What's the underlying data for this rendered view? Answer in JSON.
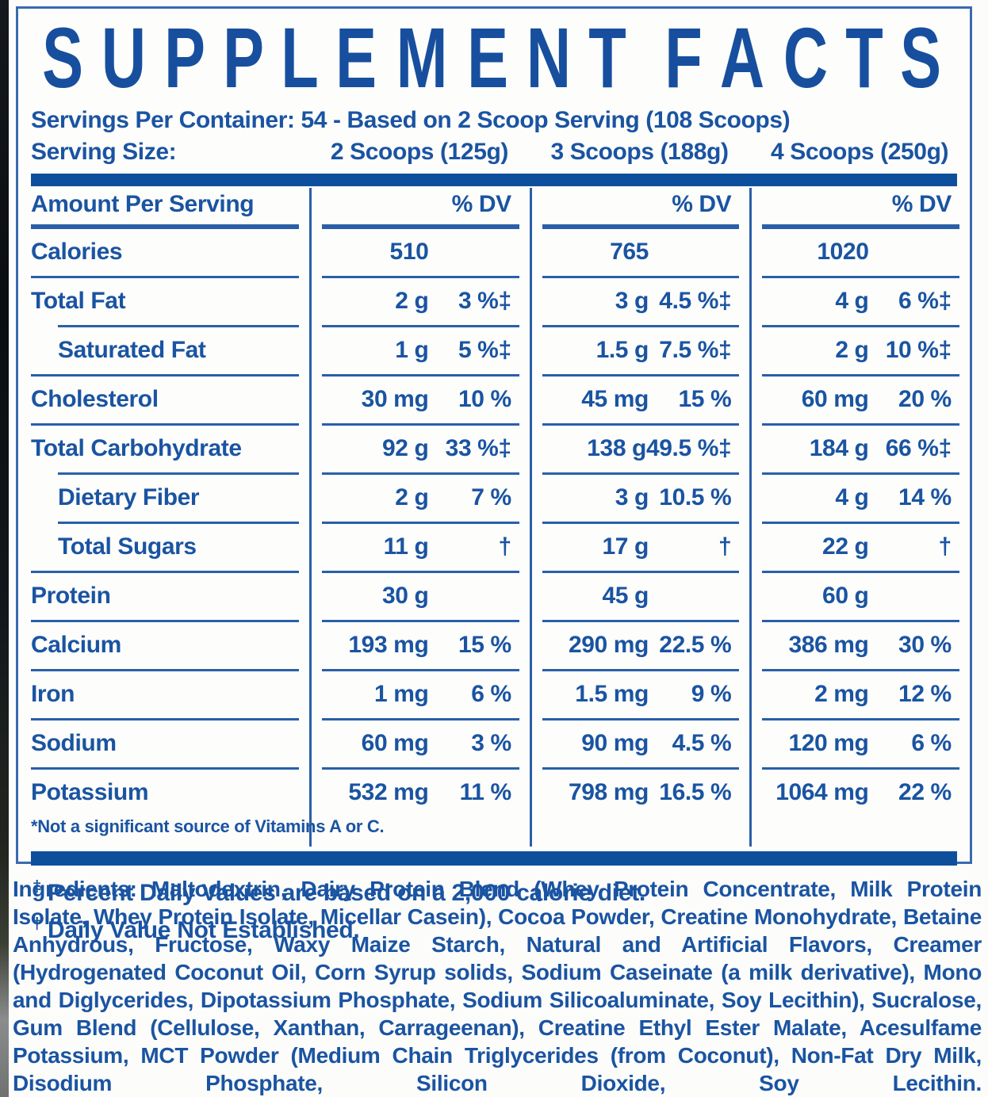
{
  "title": "SUPPLEMENT FACTS",
  "servings_line": "Servings Per Container: 54 - Based on 2 Scoop Serving (108 Scoops)",
  "serving_size_label": "Serving Size:",
  "serving_columns": [
    "2 Scoops (125g)",
    "3 Scoops (188g)",
    "4 Scoops (250g)"
  ],
  "table": {
    "header": {
      "label": "Amount Per Serving",
      "dv": "% DV"
    },
    "rows": [
      {
        "name": "Calories",
        "indent": false,
        "values": [
          {
            "amt": "510",
            "dv": ""
          },
          {
            "amt": "765",
            "dv": ""
          },
          {
            "amt": "1020",
            "dv": ""
          }
        ]
      },
      {
        "name": "Total Fat",
        "indent": false,
        "values": [
          {
            "amt": "2 g",
            "dv": "3 %‡"
          },
          {
            "amt": "3 g",
            "dv": "4.5 %‡"
          },
          {
            "amt": "4 g",
            "dv": "6 %‡"
          }
        ]
      },
      {
        "name": "Saturated Fat",
        "indent": true,
        "values": [
          {
            "amt": "1 g",
            "dv": "5 %‡"
          },
          {
            "amt": "1.5 g",
            "dv": "7.5 %‡"
          },
          {
            "amt": "2 g",
            "dv": "10 %‡"
          }
        ]
      },
      {
        "name": "Cholesterol",
        "indent": false,
        "values": [
          {
            "amt": "30 mg",
            "dv": "10 %"
          },
          {
            "amt": "45 mg",
            "dv": "15 %"
          },
          {
            "amt": "60 mg",
            "dv": "20 %"
          }
        ]
      },
      {
        "name": "Total Carbohydrate",
        "indent": false,
        "values": [
          {
            "amt": "92 g",
            "dv": "33 %‡"
          },
          {
            "amt": "138 g",
            "dv": "49.5 %‡"
          },
          {
            "amt": "184 g",
            "dv": "66 %‡"
          }
        ]
      },
      {
        "name": "Dietary Fiber",
        "indent": true,
        "values": [
          {
            "amt": "2 g",
            "dv": "7 %"
          },
          {
            "amt": "3 g",
            "dv": "10.5 %"
          },
          {
            "amt": "4 g",
            "dv": "14 %"
          }
        ]
      },
      {
        "name": "Total Sugars",
        "indent": true,
        "values": [
          {
            "amt": "11 g",
            "dv": "†"
          },
          {
            "amt": "17 g",
            "dv": "†"
          },
          {
            "amt": "22 g",
            "dv": "†"
          }
        ]
      },
      {
        "name": "Protein",
        "indent": false,
        "values": [
          {
            "amt": "30 g",
            "dv": ""
          },
          {
            "amt": "45 g",
            "dv": ""
          },
          {
            "amt": "60 g",
            "dv": ""
          }
        ]
      },
      {
        "name": "Calcium",
        "indent": false,
        "values": [
          {
            "amt": "193 mg",
            "dv": "15 %"
          },
          {
            "amt": "290 mg",
            "dv": "22.5 %"
          },
          {
            "amt": "386 mg",
            "dv": "30 %"
          }
        ]
      },
      {
        "name": "Iron",
        "indent": false,
        "values": [
          {
            "amt": "1 mg",
            "dv": "6 %"
          },
          {
            "amt": "1.5 mg",
            "dv": "9 %"
          },
          {
            "amt": "2 mg",
            "dv": "12 %"
          }
        ]
      },
      {
        "name": "Sodium",
        "indent": false,
        "values": [
          {
            "amt": "60 mg",
            "dv": "3 %"
          },
          {
            "amt": "90 mg",
            "dv": "4.5 %"
          },
          {
            "amt": "120 mg",
            "dv": "6 %"
          }
        ]
      },
      {
        "name": "Potassium",
        "indent": false,
        "values": [
          {
            "amt": "532 mg",
            "dv": "11 %"
          },
          {
            "amt": "798 mg",
            "dv": "16.5 %"
          },
          {
            "amt": "1064 mg",
            "dv": "22 %"
          }
        ]
      }
    ],
    "footnote": "*Not a significant source of Vitamins A or C."
  },
  "footnotes": [
    {
      "symbol": "‡",
      "text": "Percent Daily Values are based on a 2,000 calorie diet."
    },
    {
      "symbol": "†",
      "text": "Daily Value Not Established."
    }
  ],
  "ingredients_label": "Ingredients:",
  "ingredients_text": "Maltodextrin, Dairy Protein Blend (Whey Protein Concentrate, Milk Protein Isolate, Whey Protein Isolate, Micellar Casein), Cocoa Powder, Creatine Monohydrate, Betaine Anhydrous, Fructose, Waxy Maize Starch, Natural and Artificial Flavors, Creamer (Hydrogenated Coconut Oil, Corn Syrup solids, Sodium Caseinate (a milk derivative), Mono and Diglycerides, Dipotassium Phosphate, Sodium Silicoaluminate, Soy Lecithin), Sucralose, Gum Blend (Cellulose, Xanthan, Carrageenan), Creatine Ethyl Ester Malate, Acesulfame Potassium, MCT Powder (Medium Chain Triglycerides (from Coconut), Non-Fat Dry Milk, Disodium Phosphate, Silicon Dioxide, Soy Lecithin.",
  "colors": {
    "text_blue": "#1a54a2",
    "bar_blue": "#0e4f9d",
    "border_blue": "#3a6ab0",
    "edge_dark": "#0f1317"
  }
}
